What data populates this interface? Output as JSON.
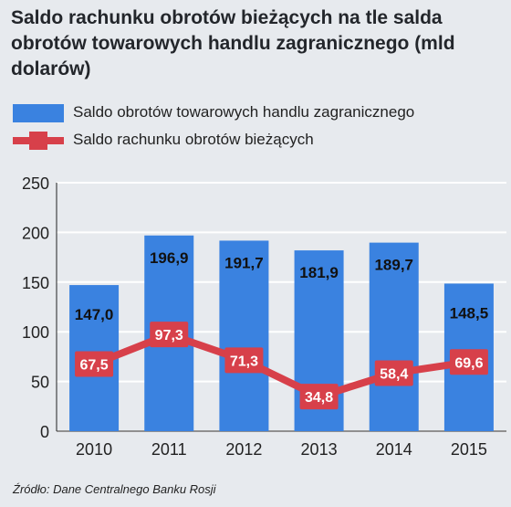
{
  "chart_data": {
    "type": "bar",
    "title": "Saldo rachunku obrotów bieżących na tle salda obrotów towarowych handlu zagranicznego (mld dolarów)",
    "categories": [
      "2010",
      "2011",
      "2012",
      "2013",
      "2014",
      "2015"
    ],
    "series": [
      {
        "name": "Saldo obrotów towarowych handlu zagranicznego",
        "type": "bar",
        "color": "#3a82e0",
        "values": [
          147.0,
          196.9,
          191.7,
          181.9,
          189.7,
          148.5
        ],
        "labels": [
          "147,0",
          "196,9",
          "191,7",
          "181,9",
          "189,7",
          "148,5"
        ]
      },
      {
        "name": "Saldo rachunku obrotów bieżących",
        "type": "line",
        "color": "#d7404a",
        "values": [
          67.5,
          97.3,
          71.3,
          34.8,
          58.4,
          69.6
        ],
        "labels": [
          "67,5",
          "97,3",
          "71,3",
          "34,8",
          "58,4",
          "69,6"
        ]
      }
    ],
    "ylim": [
      0,
      250
    ],
    "yticks": [
      0,
      50,
      100,
      150,
      200,
      250
    ],
    "grid": true,
    "legend": "top-left"
  },
  "source": "Źródło: Dane Centralnego Banku Rosji"
}
